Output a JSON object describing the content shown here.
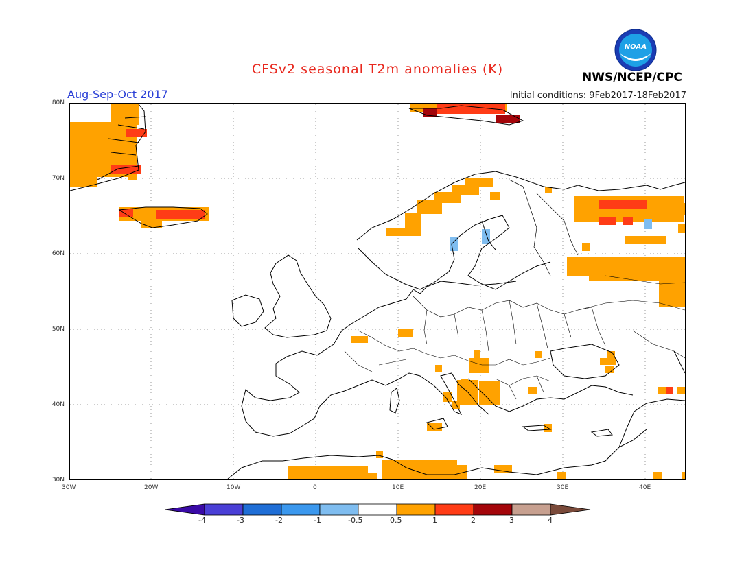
{
  "header": {
    "title": "CFSv2 seasonal T2m anomalies (K)",
    "period": "Aug-Sep-Oct 2017",
    "initial_conditions": "Initial conditions: 9Feb2017-18Feb2017",
    "agency": "NWS/NCEP/CPC",
    "logo_text": "NOAA"
  },
  "axes": {
    "lat_labels": [
      "80N",
      "70N",
      "60N",
      "50N",
      "40N",
      "30N"
    ],
    "lon_labels": [
      "30W",
      "20W",
      "10W",
      "0",
      "10E",
      "20E",
      "30E",
      "40E"
    ]
  },
  "colorbar": {
    "labels": [
      "-4",
      "-3",
      "-2",
      "-1",
      "-0.5",
      "0.5",
      "1",
      "2",
      "3",
      "4"
    ],
    "colors": [
      "#3a0aa6",
      "#4a3fd6",
      "#1f6ed6",
      "#3b98ee",
      "#7fbdf0",
      "#ffffff",
      "#ffa200",
      "#ff3c16",
      "#a4050a",
      "#c7a090",
      "#7a4a3a"
    ]
  },
  "anomaly_colors": {
    "orange": "#ffa200",
    "red": "#ff3c16",
    "darkred": "#a4050a",
    "lightblue": "#7fbdf0"
  }
}
